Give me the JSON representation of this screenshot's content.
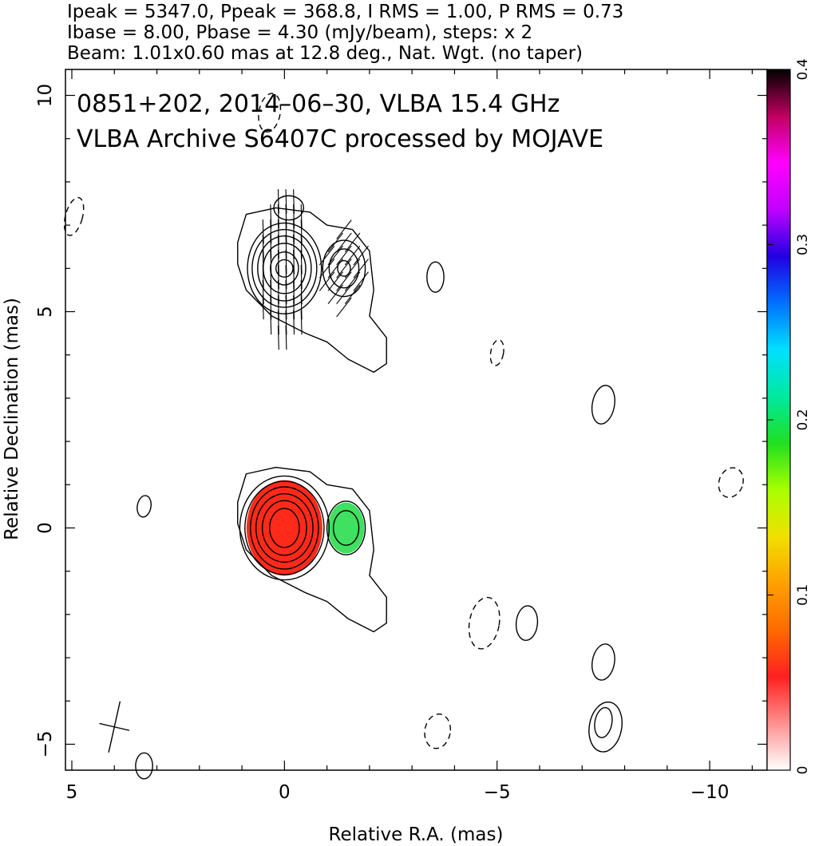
{
  "header": {
    "line1": "Ipeak = 5347.0, Ppeak = 368.8, I RMS = 1.00, P RMS = 0.73",
    "line2": "Ibase = 8.00, Pbase = 4.30 (mJy/beam), steps: x 2",
    "line3": "Beam: 1.01x0.60 mas at 12.8 deg., Nat. Wgt. (no taper)"
  },
  "title": {
    "line1": "0851+202, 2014–06–30, VLBA 15.4 GHz",
    "line2": "VLBA Archive S6407C processed by MOJAVE"
  },
  "chart_data": {
    "type": "contour",
    "xlabel": "Relative R.A. (mas)",
    "ylabel": "Relative Declination (mas)",
    "xlim": [
      5.15,
      -11.35
    ],
    "ylim": [
      -5.6,
      10.6
    ],
    "x_ticks": [
      5,
      0,
      -5,
      -10
    ],
    "x_tick_labels": [
      "5",
      "0",
      "−5",
      "−10"
    ],
    "y_ticks": [
      10,
      5,
      0,
      -5
    ],
    "y_tick_labels": [
      "10",
      "5",
      "0",
      "−5"
    ],
    "stats": {
      "Ipeak_mJy_per_beam": 5347.0,
      "Ppeak_mJy_per_beam": 368.8,
      "I_RMS": 1.0,
      "P_RMS": 0.73,
      "Ibase": 8.0,
      "Pbase": 4.3,
      "contour_step_factor": 2
    },
    "beam": {
      "major_mas": 1.01,
      "minor_mas": 0.6,
      "pa_deg": 12.8,
      "center": [
        4.0,
        -4.6
      ]
    },
    "colorbar": {
      "range": [
        0,
        0.4
      ],
      "ticks": [
        0,
        0.1,
        0.2,
        0.3,
        0.4
      ],
      "tick_labels": [
        "0",
        "0.1",
        "0.2",
        "0.3",
        "0.4"
      ],
      "colors": [
        "#ffffff",
        "#ff9090",
        "#ff2020",
        "#ff6a00",
        "#ffa000",
        "#f0e000",
        "#a8ff00",
        "#20e020",
        "#00e8a0",
        "#00e0ff",
        "#0070ff",
        "#2000e0",
        "#c000ff",
        "#ff00ff",
        "#c00060",
        "#000000"
      ]
    },
    "components": [
      {
        "name": "core",
        "center": [
          0.0,
          0.0
        ],
        "contours": [
          {
            "rx": 0.35,
            "ry": 0.45,
            "ang": 0
          },
          {
            "rx": 0.52,
            "ry": 0.63,
            "ang": 0
          },
          {
            "rx": 0.67,
            "ry": 0.79,
            "ang": 0
          },
          {
            "rx": 0.8,
            "ry": 0.95,
            "ang": 0
          },
          {
            "rx": 0.93,
            "ry": 1.08,
            "ang": 0
          },
          {
            "rx": 1.05,
            "ry": 1.2,
            "ang": 0
          }
        ],
        "fractional_pol_color": "#ff2a1a"
      },
      {
        "name": "mirror-core",
        "center": [
          0.0,
          6.0
        ],
        "contours": [
          {
            "rx": 0.2,
            "ry": 0.2,
            "ang": 0
          },
          {
            "rx": 0.33,
            "ry": 0.38,
            "ang": 0
          },
          {
            "rx": 0.5,
            "ry": 0.58,
            "ang": 0
          },
          {
            "rx": 0.63,
            "ry": 0.75,
            "ang": 0
          },
          {
            "rx": 0.76,
            "ry": 0.9,
            "ang": 0
          },
          {
            "rx": 0.87,
            "ry": 1.05,
            "ang": 0
          }
        ]
      },
      {
        "name": "jet-knot",
        "center": [
          -1.45,
          0.0
        ],
        "contours": [
          {
            "rx": 0.3,
            "ry": 0.4,
            "ang": 0
          },
          {
            "rx": 0.45,
            "ry": 0.62,
            "ang": 0
          }
        ],
        "fractional_pol_color": "#40e060"
      },
      {
        "name": "mirror-jet-knot",
        "center": [
          -1.4,
          6.0
        ],
        "contours": [
          {
            "rx": 0.15,
            "ry": 0.18,
            "ang": 0
          },
          {
            "rx": 0.35,
            "ry": 0.45,
            "ang": 0
          },
          {
            "rx": 0.5,
            "ry": 0.65,
            "ang": 0
          }
        ]
      }
    ],
    "noise_contours": [
      {
        "x": 3.3,
        "y": 0.5,
        "rx": 0.16,
        "ry": 0.25,
        "ang": 10,
        "dashed": false
      },
      {
        "x": -3.55,
        "y": 5.8,
        "rx": 0.2,
        "ry": 0.35,
        "ang": 0,
        "dashed": false
      },
      {
        "x": -5.0,
        "y": 4.05,
        "rx": 0.15,
        "ry": 0.3,
        "ang": 10,
        "dashed": true
      },
      {
        "x": -7.5,
        "y": 2.85,
        "rx": 0.26,
        "ry": 0.45,
        "ang": 10,
        "dashed": false
      },
      {
        "x": -10.5,
        "y": 1.05,
        "rx": 0.28,
        "ry": 0.35,
        "ang": 20,
        "dashed": true
      },
      {
        "x": -4.7,
        "y": -2.2,
        "rx": 0.35,
        "ry": 0.6,
        "ang": 10,
        "dashed": true
      },
      {
        "x": -5.7,
        "y": -2.2,
        "rx": 0.25,
        "ry": 0.4,
        "ang": 5,
        "dashed": false
      },
      {
        "x": -7.5,
        "y": -3.1,
        "rx": 0.26,
        "ry": 0.42,
        "ang": 10,
        "dashed": false
      },
      {
        "x": -7.55,
        "y": -4.6,
        "rx": 0.38,
        "ry": 0.58,
        "ang": 10,
        "dashed": false
      },
      {
        "x": -7.5,
        "y": -4.5,
        "rx": 0.2,
        "ry": 0.35,
        "ang": 10,
        "dashed": false
      },
      {
        "x": -3.6,
        "y": -4.7,
        "rx": 0.3,
        "ry": 0.4,
        "ang": 10,
        "dashed": true
      },
      {
        "x": 0.35,
        "y": 9.6,
        "rx": 0.25,
        "ry": 0.45,
        "ang": 10,
        "dashed": true
      },
      {
        "x": 4.95,
        "y": 7.2,
        "rx": 0.2,
        "ry": 0.45,
        "ang": 15,
        "dashed": true
      },
      {
        "x": 3.3,
        "y": -5.5,
        "rx": 0.2,
        "ry": 0.3,
        "ang": 0,
        "dashed": false
      },
      {
        "x": -0.1,
        "y": 7.4,
        "rx": 0.35,
        "ry": 0.28,
        "ang": 0,
        "dashed": false
      }
    ]
  }
}
